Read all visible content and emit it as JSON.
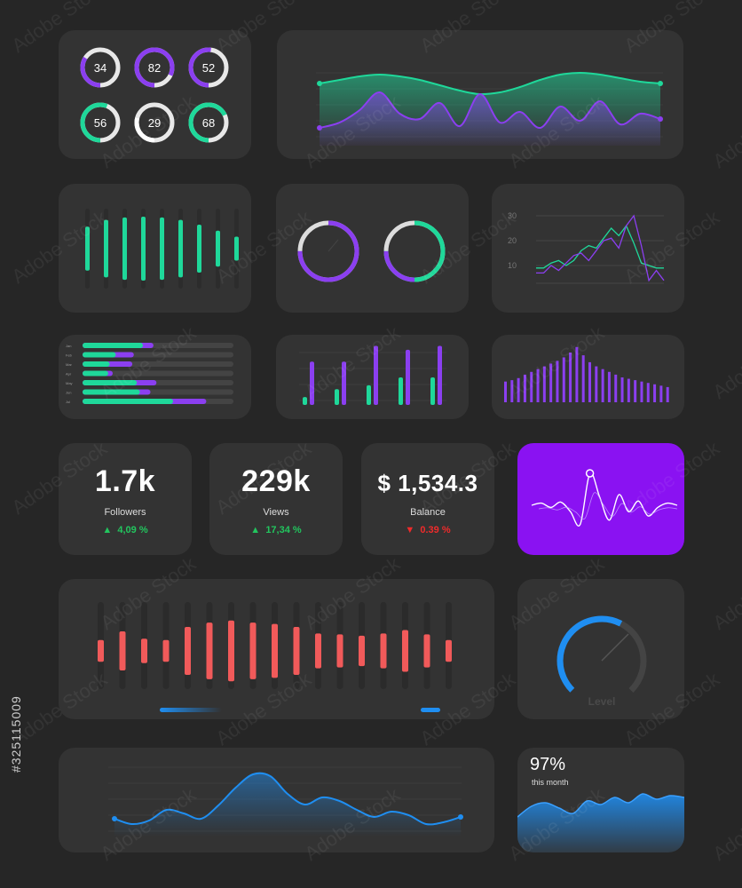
{
  "colors": {
    "green": "#1fd89a",
    "purple": "#8b3ff0",
    "red": "#f15a5a",
    "blue": "#1f8ef1",
    "card": "#333333",
    "bg": "#262626",
    "track": "#444444"
  },
  "chart_data": [
    {
      "id": "rings",
      "type": "pie",
      "values": [
        34,
        82,
        52,
        56,
        29,
        68
      ],
      "colors": [
        "purple",
        "purple",
        "purple",
        "green",
        "white",
        "green"
      ]
    },
    {
      "id": "dual-wave",
      "type": "area",
      "series": [
        {
          "name": "",
          "values": [
            70,
            74,
            78,
            80,
            78,
            74,
            68,
            62,
            58,
            60,
            66,
            74,
            80,
            82,
            80,
            76,
            72,
            70
          ]
        },
        {
          "name": "",
          "values": [
            20,
            26,
            40,
            60,
            36,
            30,
            48,
            22,
            58,
            26,
            38,
            20,
            44,
            28,
            50,
            24,
            36,
            30
          ]
        }
      ]
    },
    {
      "id": "bars-green",
      "type": "bar",
      "values": [
        55,
        72,
        78,
        80,
        78,
        72,
        60,
        45,
        30
      ],
      "max": 100
    },
    {
      "id": "donuts",
      "type": "pie",
      "values": [
        75,
        75
      ]
    },
    {
      "id": "lines-small",
      "type": "line",
      "yticks": [
        "30",
        "20",
        "10"
      ],
      "ylim": [
        0,
        35
      ],
      "series": [
        {
          "name": "",
          "values": [
            9,
            9,
            11,
            12,
            10,
            12,
            16,
            18,
            17,
            21,
            25,
            22,
            26,
            19,
            11,
            10,
            9,
            9
          ]
        },
        {
          "name": "",
          "values": [
            7,
            7,
            10,
            8,
            11,
            14,
            15,
            12,
            16,
            20,
            21,
            17,
            26,
            30,
            18,
            4,
            8,
            4
          ]
        }
      ]
    },
    {
      "id": "hbars",
      "type": "bar",
      "categories": [
        "Jan",
        "Feb",
        "Mar",
        "Apr",
        "May",
        "Jun",
        "Jul"
      ],
      "series": [
        {
          "name": "",
          "values": [
            40,
            22,
            18,
            17,
            36,
            38,
            60
          ]
        },
        {
          "name": "",
          "values": [
            47,
            34,
            33,
            20,
            49,
            45,
            82
          ]
        }
      ],
      "max": 100
    },
    {
      "id": "pairs",
      "type": "bar",
      "series": [
        {
          "name": "",
          "values": [
            10,
            20,
            25,
            35,
            35
          ]
        },
        {
          "name": "",
          "values": [
            55,
            55,
            75,
            70,
            75
          ]
        }
      ],
      "max": 80
    },
    {
      "id": "spectrum",
      "type": "bar",
      "values": [
        30,
        32,
        35,
        40,
        44,
        48,
        52,
        56,
        60,
        65,
        72,
        80,
        68,
        58,
        52,
        48,
        44,
        40,
        36,
        34,
        32,
        30,
        28,
        26,
        24,
        22
      ],
      "max": 90
    },
    {
      "id": "pulse",
      "type": "line",
      "values": [
        0,
        2,
        -2,
        3,
        -6,
        -18,
        30,
        8,
        -14,
        10,
        -6,
        4,
        -10,
        -2,
        2,
        0
      ]
    },
    {
      "id": "bars-red",
      "type": "bar",
      "values": [
        25,
        45,
        28,
        25,
        55,
        65,
        70,
        65,
        62,
        55,
        40,
        38,
        35,
        40,
        48,
        38,
        25
      ],
      "max": 100
    },
    {
      "id": "gauge",
      "type": "pie",
      "values": [
        60
      ],
      "label": "Level"
    },
    {
      "id": "wave-blue",
      "type": "area",
      "values": [
        20,
        14,
        18,
        30,
        26,
        20,
        35,
        55,
        70,
        68,
        48,
        36,
        44,
        40,
        30,
        22,
        28,
        24,
        14,
        16,
        22
      ]
    },
    {
      "id": "wave-month",
      "type": "area",
      "values": [
        30,
        42,
        46,
        40,
        34,
        48,
        44,
        52,
        46,
        56,
        50,
        54,
        52
      ]
    }
  ],
  "stats": {
    "followers": {
      "value": "1.7k",
      "label": "Followers",
      "change": "4,09 %"
    },
    "views": {
      "value": "229k",
      "label": "Views",
      "change": "17,34 %"
    },
    "balance": {
      "value": "$ 1,534.3",
      "label": "Balance",
      "change": "0.39 %"
    }
  },
  "month": {
    "value": "97%",
    "label": "this month"
  },
  "watermark": {
    "id": "#325115009",
    "text": "Adobe Stock"
  }
}
